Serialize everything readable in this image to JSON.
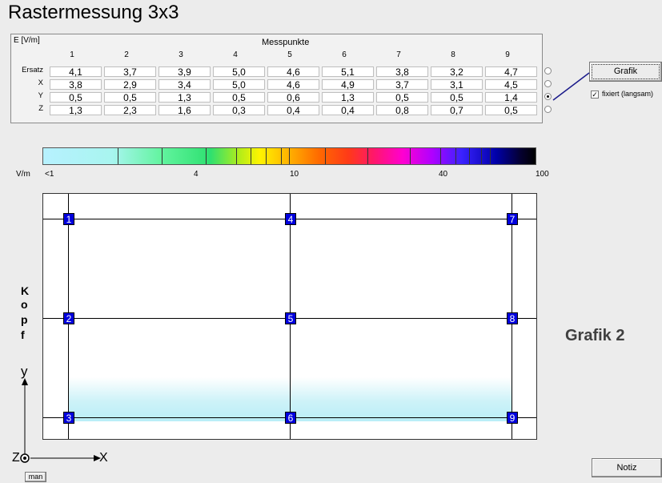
{
  "title": "Rastermessung 3x3",
  "table": {
    "unit_label": "E [V/m]",
    "header": "Messpunkte",
    "columns": [
      "1",
      "2",
      "3",
      "4",
      "5",
      "6",
      "7",
      "8",
      "9"
    ],
    "rows": [
      {
        "label": "Ersatz",
        "values": [
          "4,1",
          "3,7",
          "3,9",
          "5,0",
          "4,6",
          "5,1",
          "3,8",
          "3,2",
          "4,7"
        ],
        "selected": false
      },
      {
        "label": "X",
        "values": [
          "3,8",
          "2,9",
          "3,4",
          "5,0",
          "4,6",
          "4,9",
          "3,7",
          "3,1",
          "4,5"
        ],
        "selected": false
      },
      {
        "label": "Y",
        "values": [
          "0,5",
          "0,5",
          "1,3",
          "0,5",
          "0,6",
          "1,3",
          "0,5",
          "0,5",
          "1,4"
        ],
        "selected": true
      },
      {
        "label": "Z",
        "values": [
          "1,3",
          "2,3",
          "1,6",
          "0,3",
          "0,4",
          "0,4",
          "0,8",
          "0,7",
          "0,5"
        ],
        "selected": false
      }
    ]
  },
  "controls": {
    "grafik_button": "Grafik",
    "fixiert_label": "fixiert (langsam)",
    "fixiert_checked": true,
    "checkmark": "✓"
  },
  "scale": {
    "unit": "V/m",
    "labels": [
      "<1",
      "4",
      "10",
      "40",
      "100"
    ]
  },
  "grid": {
    "points": [
      "1",
      "2",
      "3",
      "4",
      "5",
      "6",
      "7",
      "8",
      "9"
    ],
    "side_label": [
      "K",
      "o",
      "p",
      "f"
    ],
    "axis_y": "y",
    "axis_x": "X",
    "axis_z": "Z"
  },
  "caption": "Grafik 2",
  "notiz_button": "Notiz",
  "man_button": "man"
}
